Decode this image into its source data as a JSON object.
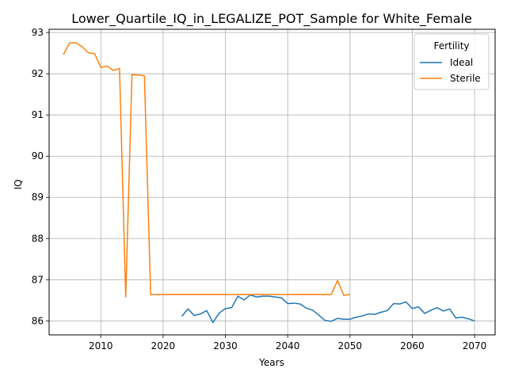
{
  "chart_data": {
    "type": "line",
    "title": "Lower_Quartile_IQ_in_LEGALIZE_POT_Sample for White_Female",
    "xlabel": "Years",
    "ylabel": "IQ",
    "xlim": [
      2001.7,
      2073.3
    ],
    "ylim": [
      85.66,
      93.08
    ],
    "xticks": [
      2010,
      2020,
      2030,
      2040,
      2050,
      2060,
      2070
    ],
    "yticks": [
      86,
      87,
      88,
      89,
      90,
      91,
      92,
      93
    ],
    "grid": true,
    "legend": {
      "title": "Fertility",
      "position": "top-right"
    },
    "colors": {
      "Ideal": "#1f77b4",
      "Sterile": "#ff7f0e"
    },
    "series": [
      {
        "name": "Ideal",
        "x": [
          2023,
          2024,
          2025,
          2026,
          2027,
          2028,
          2029,
          2030,
          2031,
          2032,
          2033,
          2034,
          2035,
          2036,
          2037,
          2038,
          2039,
          2040,
          2041,
          2042,
          2043,
          2044,
          2045,
          2046,
          2047,
          2048,
          2049,
          2050,
          2051,
          2052,
          2053,
          2054,
          2055,
          2056,
          2057,
          2058,
          2059,
          2060,
          2061,
          2062,
          2063,
          2064,
          2065,
          2066,
          2067,
          2068,
          2069,
          2070
        ],
        "values": [
          86.11,
          86.29,
          86.13,
          86.17,
          86.25,
          85.96,
          86.19,
          86.3,
          86.32,
          86.6,
          86.51,
          86.63,
          86.58,
          86.6,
          86.6,
          86.58,
          86.56,
          86.42,
          86.43,
          86.41,
          86.31,
          86.26,
          86.14,
          86.01,
          85.99,
          86.06,
          86.04,
          86.04,
          86.09,
          86.12,
          86.17,
          86.16,
          86.21,
          86.25,
          86.42,
          86.41,
          86.46,
          86.3,
          86.34,
          86.18,
          86.26,
          86.32,
          86.24,
          86.29,
          86.07,
          86.09,
          86.05,
          86.0
        ]
      },
      {
        "name": "Sterile",
        "x": [
          2004,
          2005,
          2006,
          2007,
          2008,
          2009,
          2010,
          2011,
          2012,
          2013,
          2014,
          2015,
          2016,
          2017,
          2018,
          2019,
          2020,
          2021,
          2022,
          2023,
          2024,
          2025,
          2026,
          2027,
          2028,
          2029,
          2030,
          2031,
          2032,
          2033,
          2034,
          2035,
          2036,
          2037,
          2038,
          2039,
          2040,
          2041,
          2042,
          2043,
          2044,
          2045,
          2046,
          2047,
          2048,
          2049,
          2050
        ],
        "values": [
          92.47,
          92.75,
          92.75,
          92.66,
          92.51,
          92.49,
          92.15,
          92.19,
          92.08,
          92.13,
          86.58,
          91.98,
          91.97,
          91.95,
          86.64,
          86.64,
          86.64,
          86.64,
          86.64,
          86.64,
          86.64,
          86.64,
          86.64,
          86.64,
          86.64,
          86.64,
          86.64,
          86.64,
          86.64,
          86.64,
          86.64,
          86.64,
          86.64,
          86.64,
          86.64,
          86.64,
          86.64,
          86.64,
          86.64,
          86.64,
          86.64,
          86.64,
          86.64,
          86.64,
          86.98,
          86.62,
          86.64
        ]
      }
    ]
  }
}
